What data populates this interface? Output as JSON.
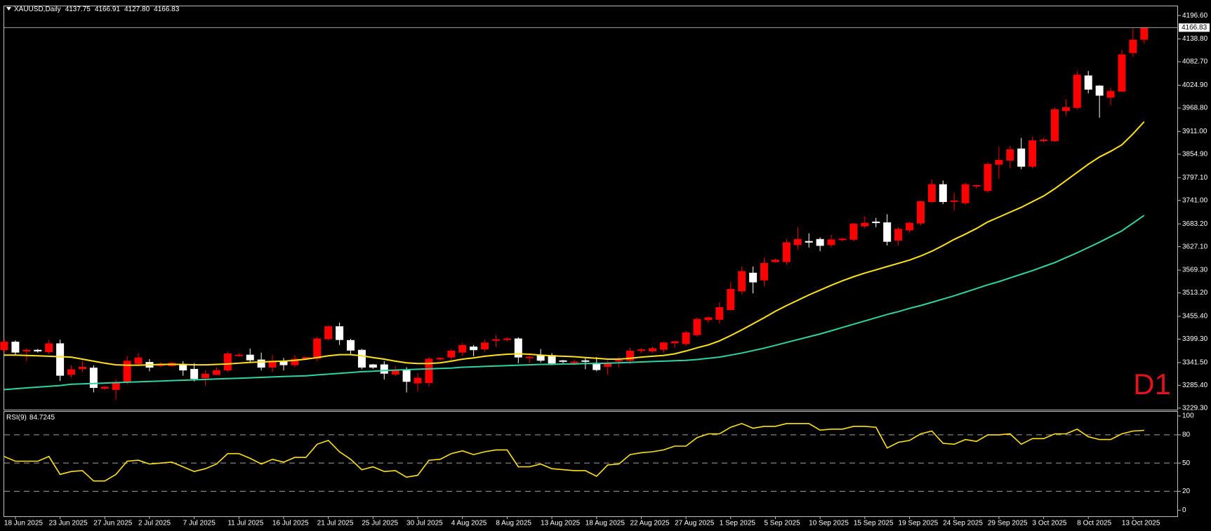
{
  "chart_data": [
    {
      "type": "candlestick",
      "title": "XAUUSD,Daily",
      "header_values": [
        "4137.75",
        "4166.91",
        "4127.80",
        "4166.83"
      ],
      "annotation": "D1",
      "categories": [
        null,
        "18 Jun 2025",
        null,
        null,
        null,
        "23 Jun 2025",
        null,
        null,
        null,
        "27 Jun 2025",
        null,
        null,
        null,
        "2 Jul 2025",
        null,
        null,
        null,
        "7 Jul 2025",
        null,
        null,
        null,
        "11 Jul 2025",
        null,
        null,
        null,
        "16 Jul 2025",
        null,
        null,
        null,
        "21 Jul 2025",
        null,
        null,
        null,
        "25 Jul 2025",
        null,
        null,
        null,
        "30 Jul 2025",
        null,
        null,
        null,
        "4 Aug 2025",
        null,
        null,
        null,
        "8 Aug 2025",
        null,
        null,
        null,
        "13 Aug 2025",
        null,
        null,
        null,
        "18 Aug 2025",
        null,
        null,
        null,
        "22 Aug 2025",
        null,
        null,
        null,
        "27 Aug 2025",
        null,
        null,
        null,
        "1 Sep 2025",
        null,
        null,
        null,
        "5 Sep 2025",
        null,
        null,
        null,
        "10 Sep 2025",
        null,
        null,
        null,
        "15 Sep 2025",
        null,
        null,
        null,
        "19 Sep 2025",
        null,
        null,
        null,
        "24 Sep 2025",
        null,
        null,
        null,
        "29 Sep 2025",
        null,
        null,
        null,
        "3 Oct 2025",
        null,
        null,
        null,
        "8 Oct 2025",
        null,
        null,
        null,
        "13 Oct 2025",
        null
      ],
      "open": [
        3373,
        3392,
        3370,
        3372,
        3368,
        3388,
        3312,
        3326,
        3328,
        3278,
        3275,
        3293,
        3339,
        3342,
        3334,
        3334,
        3336,
        3325,
        3304,
        3312,
        3323,
        3360,
        3360,
        3348,
        3330,
        3345,
        3336,
        3352,
        3352,
        3400,
        3430,
        3396,
        3372,
        3336,
        3336,
        3313,
        3323,
        3291,
        3292,
        3350,
        3355,
        3367,
        3380,
        3375,
        3397,
        3398,
        3400,
        3355,
        3358,
        3359,
        3346,
        3342,
        3346,
        3340,
        3332,
        3345,
        3347,
        3371,
        3370,
        3374,
        3390,
        3388,
        3410,
        3447,
        3448,
        3472,
        3518,
        3562,
        3545,
        3590,
        3590,
        3632,
        3640,
        3645,
        3632,
        3645,
        3645,
        3678,
        3688,
        3686,
        3643,
        3668,
        3685,
        3738,
        3780,
        3740,
        3735,
        3778,
        3765,
        3830,
        3840,
        3868,
        3825,
        3888,
        3888,
        3962,
        3970,
        4048,
        4023,
        3995,
        4010,
        4105,
        4137.75
      ],
      "high": [
        3401,
        3396,
        3376,
        3375,
        3397,
        3398,
        3335,
        3345,
        3335,
        3284,
        3300,
        3358,
        3365,
        3350,
        3342,
        3343,
        3345,
        3340,
        3323,
        3330,
        3368,
        3365,
        3376,
        3366,
        3360,
        3353,
        3360,
        3356,
        3405,
        3434,
        3440,
        3400,
        3375,
        3338,
        3345,
        3333,
        3330,
        3315,
        3355,
        3355,
        3375,
        3390,
        3385,
        3398,
        3409,
        3404,
        3404,
        3360,
        3375,
        3365,
        3348,
        3348,
        3352,
        3355,
        3346,
        3355,
        3378,
        3377,
        3381,
        3393,
        3395,
        3420,
        3453,
        3455,
        3490,
        3540,
        3578,
        3578,
        3600,
        3598,
        3646,
        3675,
        3660,
        3650,
        3656,
        3650,
        3686,
        3702,
        3698,
        3707,
        3675,
        3688,
        3740,
        3792,
        3790,
        3760,
        3785,
        3780,
        3835,
        3872,
        3875,
        3895,
        3898,
        3895,
        3970,
        3990,
        4060,
        4060,
        4025,
        4018,
        4112,
        4165,
        4166.91
      ],
      "low": [
        3364,
        3360,
        3345,
        3366,
        3362,
        3296,
        3305,
        3318,
        3268,
        3274,
        3250,
        3288,
        3335,
        3320,
        3330,
        3331,
        3309,
        3295,
        3285,
        3310,
        3318,
        3356,
        3340,
        3322,
        3318,
        3322,
        3330,
        3348,
        3345,
        3396,
        3385,
        3360,
        3325,
        3326,
        3300,
        3308,
        3268,
        3270,
        3282,
        3346,
        3347,
        3358,
        3357,
        3368,
        3380,
        3394,
        3340,
        3340,
        3342,
        3335,
        3340,
        3335,
        3325,
        3320,
        3312,
        3330,
        3338,
        3365,
        3365,
        3365,
        3378,
        3383,
        3405,
        3440,
        3438,
        3470,
        3510,
        3512,
        3530,
        3588,
        3582,
        3620,
        3625,
        3616,
        3625,
        3640,
        3640,
        3672,
        3675,
        3630,
        3630,
        3662,
        3680,
        3735,
        3732,
        3716,
        3730,
        3770,
        3760,
        3795,
        3820,
        3818,
        3820,
        3884,
        3885,
        3950,
        3965,
        4005,
        3945,
        3975,
        4008,
        4095,
        4127.8
      ],
      "close": [
        3392,
        3367,
        3372,
        3370,
        3388,
        3310,
        3324,
        3330,
        3280,
        3281,
        3293,
        3345,
        3353,
        3330,
        3336,
        3340,
        3323,
        3302,
        3313,
        3322,
        3363,
        3360,
        3348,
        3330,
        3345,
        3336,
        3350,
        3354,
        3400,
        3430,
        3398,
        3372,
        3330,
        3330,
        3315,
        3323,
        3295,
        3303,
        3350,
        3352,
        3370,
        3384,
        3373,
        3390,
        3398,
        3400,
        3355,
        3355,
        3347,
        3340,
        3345,
        3343,
        3345,
        3324,
        3340,
        3347,
        3370,
        3373,
        3376,
        3390,
        3393,
        3415,
        3448,
        3452,
        3477,
        3522,
        3566,
        3540,
        3586,
        3594,
        3637,
        3645,
        3638,
        3630,
        3644,
        3646,
        3683,
        3685,
        3686,
        3640,
        3670,
        3685,
        3738,
        3780,
        3738,
        3740,
        3780,
        3778,
        3830,
        3840,
        3866,
        3825,
        3888,
        3890,
        3965,
        3970,
        4050,
        4015,
        4000,
        4010,
        4100,
        4136,
        4166.83
      ],
      "up_color": "#ff0000",
      "down_color": "#ffffff",
      "lines": [
        {
          "color": "#ffe31a",
          "values": [
            3360,
            3360,
            3359,
            3358,
            3357,
            3356,
            3355,
            3350,
            3345,
            3340,
            3336,
            3335,
            3335,
            3336,
            3337,
            3337,
            3337,
            3336,
            3336,
            3337,
            3338,
            3340,
            3342,
            3343,
            3344,
            3345,
            3347,
            3350,
            3354,
            3358,
            3361,
            3361,
            3358,
            3354,
            3350,
            3345,
            3341,
            3339,
            3339,
            3341,
            3345,
            3350,
            3353,
            3357,
            3360,
            3362,
            3363,
            3362,
            3360,
            3358,
            3357,
            3356,
            3354,
            3352,
            3350,
            3350,
            3352,
            3355,
            3357,
            3359,
            3363,
            3370,
            3378,
            3385,
            3395,
            3408,
            3422,
            3437,
            3452,
            3468,
            3482,
            3495,
            3508,
            3520,
            3532,
            3543,
            3553,
            3562,
            3570,
            3578,
            3586,
            3594,
            3604,
            3616,
            3630,
            3645,
            3658,
            3672,
            3688,
            3700,
            3712,
            3724,
            3738,
            3752,
            3770,
            3790,
            3810,
            3830,
            3848,
            3862,
            3878,
            3905,
            3935
          ]
        },
        {
          "color": "#2fd3a6",
          "values": [
            3275,
            3277,
            3279,
            3281,
            3283,
            3285,
            3288,
            3289,
            3290,
            3291,
            3292,
            3293,
            3294,
            3295,
            3296,
            3297,
            3298,
            3299,
            3300,
            3301,
            3302,
            3303,
            3304,
            3305,
            3306,
            3307,
            3308,
            3309,
            3311,
            3313,
            3315,
            3317,
            3319,
            3320,
            3322,
            3323,
            3324,
            3325,
            3326,
            3327,
            3328,
            3330,
            3331,
            3332,
            3333,
            3334,
            3335,
            3336,
            3337,
            3337,
            3338,
            3338,
            3339,
            3339,
            3340,
            3341,
            3342,
            3343,
            3344,
            3345,
            3346,
            3347,
            3349,
            3352,
            3355,
            3360,
            3365,
            3371,
            3377,
            3384,
            3391,
            3398,
            3405,
            3412,
            3420,
            3428,
            3436,
            3444,
            3452,
            3460,
            3467,
            3475,
            3482,
            3490,
            3498,
            3506,
            3515,
            3524,
            3533,
            3541,
            3550,
            3559,
            3568,
            3578,
            3588,
            3600,
            3612,
            3625,
            3638,
            3652,
            3666,
            3685,
            3704
          ]
        }
      ],
      "ylim": [
        3225.5,
        4219.3
      ],
      "yticks": [
        {
          "value": 3229.3,
          "label": "3229.30"
        },
        {
          "value": 3285.4,
          "label": "3285.40"
        },
        {
          "value": 3341.5,
          "label": "3341.50"
        },
        {
          "value": 3399.3,
          "label": "3399.30"
        },
        {
          "value": 3455.4,
          "label": "3455.40"
        },
        {
          "value": 3513.2,
          "label": "3513.20"
        },
        {
          "value": 3569.3,
          "label": "3569.30"
        },
        {
          "value": 3627.1,
          "label": "3627.10"
        },
        {
          "value": 3683.2,
          "label": "3683.20"
        },
        {
          "value": 3741,
          "label": "3741.00"
        },
        {
          "value": 3797.1,
          "label": "3797.10"
        },
        {
          "value": 3854.9,
          "label": "3854.90"
        },
        {
          "value": 3911,
          "label": "3911.00"
        },
        {
          "value": 3968.8,
          "label": "3968.80"
        },
        {
          "value": 4024.9,
          "label": "4024.90"
        },
        {
          "value": 4082.7,
          "label": "4082.70"
        },
        {
          "value": 4138.8,
          "label": "4138.80"
        },
        {
          "value": 4196.6,
          "label": "4196.60"
        }
      ]
    },
    {
      "type": "line",
      "title": "RSI(9)",
      "color": "#ffe31a",
      "values": [
        57,
        52,
        52,
        52,
        57,
        38,
        41,
        42,
        31,
        31,
        38,
        52,
        53,
        49,
        50,
        51,
        46,
        41,
        44,
        49,
        60,
        60,
        55,
        49,
        54,
        51,
        56,
        56,
        70,
        74,
        62,
        54,
        43,
        46,
        41,
        42,
        35,
        37,
        53,
        54,
        60,
        63,
        59,
        62,
        64,
        64,
        46,
        46,
        49,
        44,
        43,
        42,
        42,
        36,
        48,
        49,
        59,
        61,
        62,
        64,
        68,
        68,
        77,
        81,
        81,
        88,
        92,
        87,
        89,
        89,
        92,
        92,
        92,
        85,
        86,
        86,
        89,
        89,
        88,
        66,
        72,
        74,
        81,
        84,
        71,
        70,
        75,
        73,
        80,
        80,
        81,
        70,
        76,
        76,
        81,
        81,
        86,
        78,
        75,
        75,
        81,
        84,
        84.7245
      ],
      "ylim": [
        -6.5,
        104.5
      ],
      "yticks": [
        0,
        20,
        50,
        80,
        100
      ],
      "levels": [
        20,
        50,
        80
      ]
    }
  ]
}
